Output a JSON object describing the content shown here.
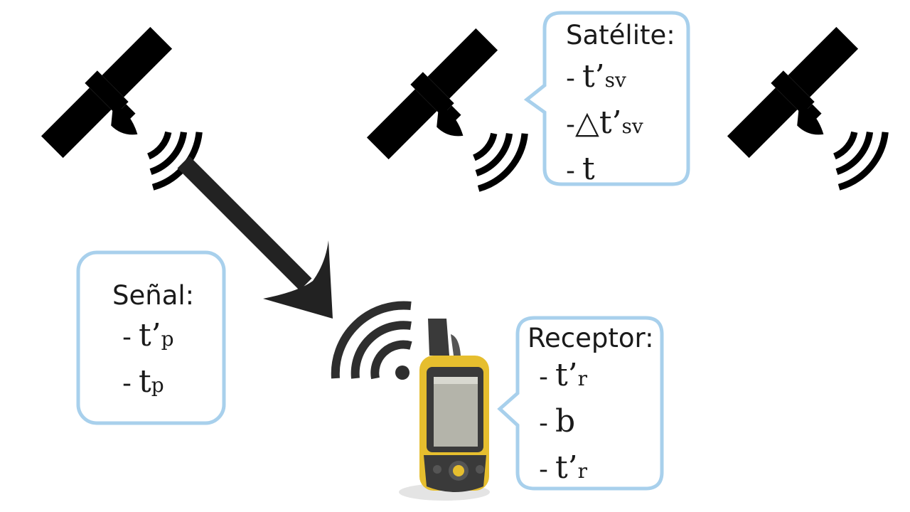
{
  "satellite_box": {
    "title": "Satélite:",
    "items": [
      {
        "dash": "-",
        "main": "t’",
        "sub": "sv",
        "prefix": ""
      },
      {
        "dash": "-",
        "main": "t’",
        "sub": "sv",
        "prefix": "△"
      },
      {
        "dash": "-",
        "main": "t",
        "sub": "",
        "prefix": ""
      }
    ]
  },
  "signal_box": {
    "title": "Señal:",
    "items": [
      {
        "dash": "-",
        "main": "t’",
        "sub": "p"
      },
      {
        "dash": "-",
        "main": "t",
        "sub": "p"
      }
    ]
  },
  "receiver_box": {
    "title": "Receptor:",
    "items": [
      {
        "dash": "-",
        "main": "t’",
        "sub": "r"
      },
      {
        "dash": "-",
        "main": "b",
        "sub": ""
      },
      {
        "dash": "-",
        "main": "t’",
        "sub": "r"
      }
    ]
  },
  "colors": {
    "callout_border": "#a8d0ec",
    "icon": "#000000",
    "arrow": "#222222",
    "gps_yellow": "#e6be2e",
    "gps_body": "#3a3a3a",
    "gps_screen": "#b4b4aa"
  },
  "icons": [
    "satellite-icon",
    "signal-waves-icon",
    "gps-receiver-icon",
    "wifi-icon",
    "arrow-icon"
  ]
}
